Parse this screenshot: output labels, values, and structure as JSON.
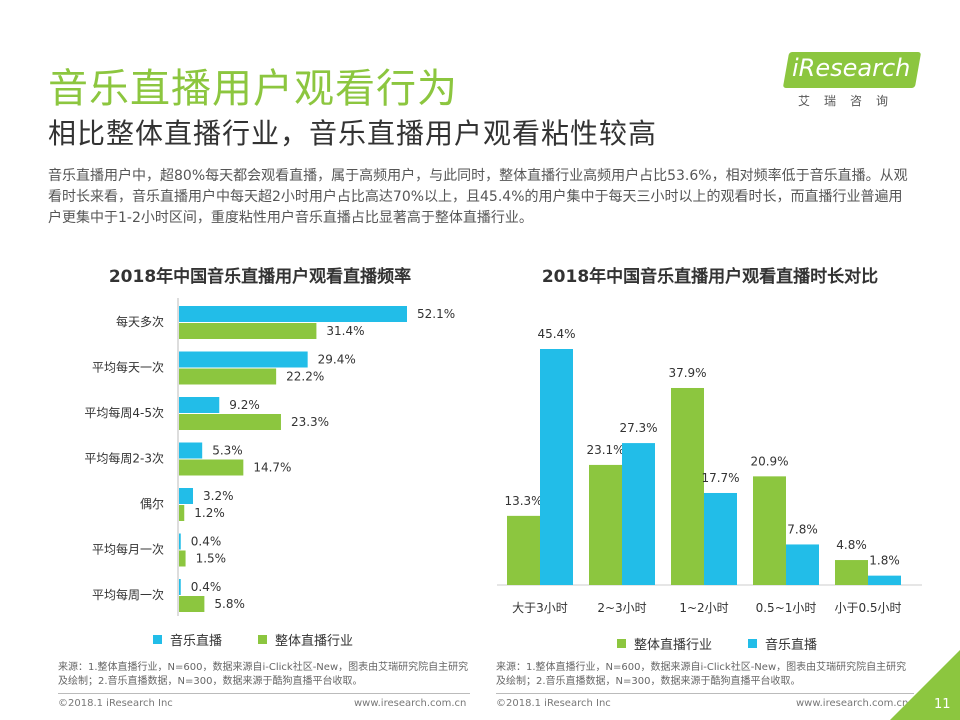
{
  "header": {
    "title": "音乐直播用户观看行为",
    "subtitle": "相比整体直播行业，音乐直播用户观看粘性较高",
    "intro": "音乐直播用户中，超80%每天都会观看直播，属于高频用户，与此同时，整体直播行业高频用户占比53.6%，相对频率低于音乐直播。从观看时长来看，音乐直播用户中每天超2小时用户占比高达70%以上，且45.4%的用户集中于每天三小时以上的观看时长，而直播行业普遍用户更集中于1-2小时区间，重度粘性用户音乐直播占比显著高于整体直播行业。"
  },
  "logo": {
    "name": "iResearch",
    "sub": "艾瑞咨询"
  },
  "colors": {
    "music": "#22bde8",
    "industry": "#8cc63f",
    "accent": "#8cc63f"
  },
  "chart_data": [
    {
      "type": "bar",
      "orientation": "horizontal",
      "title": "2018年中国音乐直播用户观看直播频率",
      "categories": [
        "每天多次",
        "平均每天一次",
        "平均每周4-5次",
        "平均每周2-3次",
        "偶尔",
        "平均每月一次",
        "平均每周一次"
      ],
      "series": [
        {
          "name": "音乐直播",
          "values": [
            52.1,
            29.4,
            9.2,
            5.3,
            3.2,
            0.4,
            0.4
          ],
          "labels": [
            "52.1%",
            "29.4%",
            "9.2%",
            "5.3%",
            "3.2%",
            "0.4%",
            "0.4%"
          ]
        },
        {
          "name": "整体直播行业",
          "values": [
            31.4,
            22.2,
            23.3,
            14.7,
            1.2,
            1.5,
            5.8
          ],
          "labels": [
            "31.4%",
            "22.2%",
            "23.3%",
            "14.7%",
            "1.2%",
            "1.5%",
            "5.8%"
          ]
        }
      ],
      "xlim": [
        0,
        52.1
      ],
      "legend": [
        "音乐直播",
        "整体直播行业"
      ]
    },
    {
      "type": "bar",
      "orientation": "vertical",
      "title": "2018年中国音乐直播用户观看直播时长对比",
      "categories": [
        "大于3小时",
        "2~3小时",
        "1~2小时",
        "0.5~1小时",
        "小于0.5小时"
      ],
      "series": [
        {
          "name": "整体直播行业",
          "values": [
            13.3,
            23.1,
            37.9,
            20.9,
            4.8
          ],
          "labels": [
            "13.3%",
            "23.1%",
            "37.9%",
            "20.9%",
            "4.8%"
          ]
        },
        {
          "name": "音乐直播",
          "values": [
            45.4,
            27.3,
            17.7,
            7.8,
            1.8
          ],
          "labels": [
            "45.4%",
            "27.3%",
            "17.7%",
            "7.8%",
            "1.8%"
          ]
        }
      ],
      "ylim": [
        0,
        45.4
      ],
      "legend": [
        "整体直播行业",
        "音乐直播"
      ]
    }
  ],
  "sources": {
    "left": "来源：1.整体直播行业，N=600，数据来源自i-Click社区-New，图表由艾瑞研究院自主研究及绘制；2.音乐直播数据，N=300，数据来源于酷狗直播平台收取。",
    "right": "来源：1.整体直播行业，N=600，数据来源自i-Click社区-New，图表由艾瑞研究院自主研究及绘制；2.音乐直播数据，N=300，数据来源于酷狗直播平台收取。"
  },
  "footer": {
    "copyright": "©2018.1 iResearch Inc",
    "website": "www.iresearch.com.cn",
    "page_number": "11"
  }
}
